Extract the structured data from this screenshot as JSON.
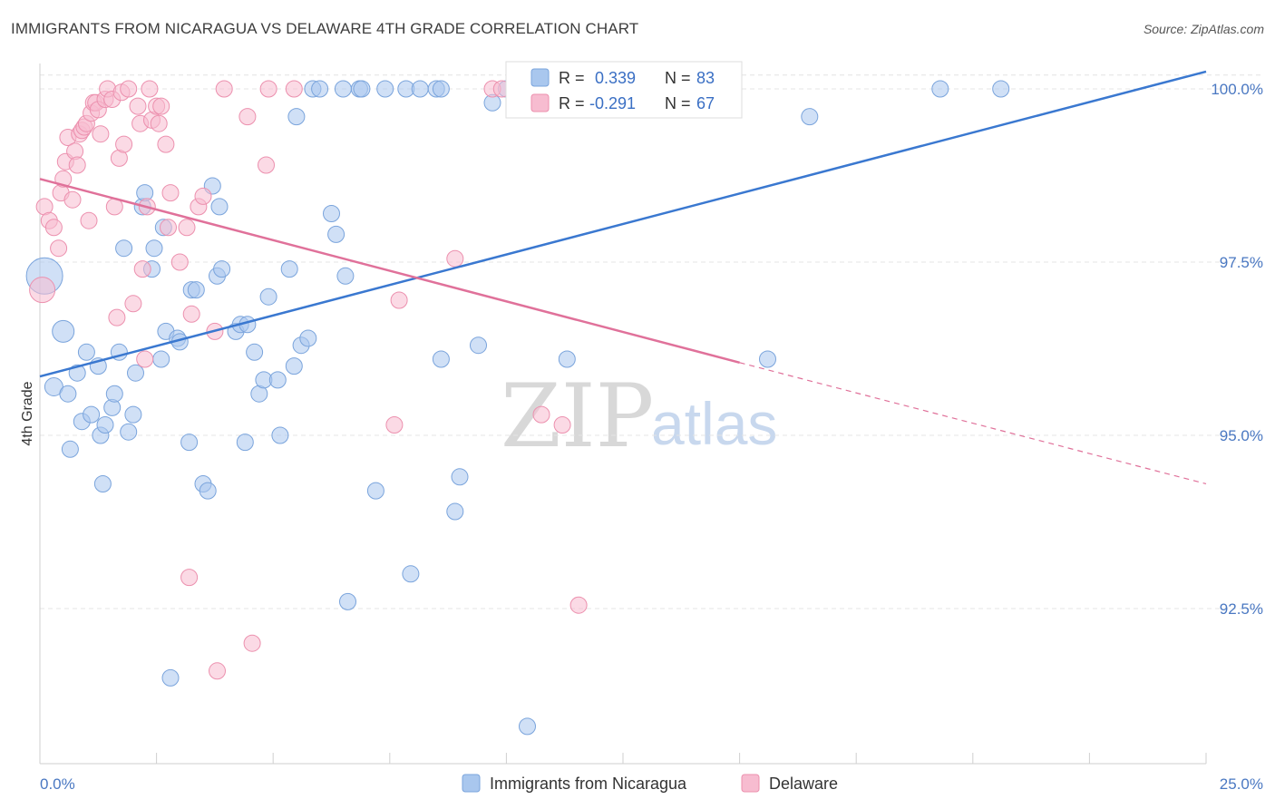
{
  "chart_data": {
    "type": "scatter",
    "title": "IMMIGRANTS FROM NICARAGUA VS DELAWARE 4TH GRADE CORRELATION CHART",
    "source": "Source: ZipAtlas.com",
    "xlabel": "",
    "ylabel": "4th Grade",
    "xlim": [
      0,
      25
    ],
    "ylim": [
      90.0,
      100.4
    ],
    "x_tick_labels": [
      "0.0%",
      "25.0%"
    ],
    "y_ticks": [
      {
        "value": 100.0,
        "label": "100.0%"
      },
      {
        "value": 97.5,
        "label": "97.5%"
      },
      {
        "value": 95.0,
        "label": "95.0%"
      },
      {
        "value": 92.5,
        "label": "92.5%"
      }
    ],
    "watermark": {
      "part1": "ZIP",
      "part2": "atlas"
    },
    "legend": [
      {
        "r_label": "R =",
        "r_value": "0.339",
        "n_label": "N =",
        "n_value": "83"
      },
      {
        "r_label": "R =",
        "r_value": "-0.291",
        "n_label": "N =",
        "n_value": "67"
      }
    ],
    "series": [
      {
        "name": "Immigrants from Nicaragua",
        "color": "#a9c7ee",
        "stroke": "#7aa4dc",
        "trend_color": "#3a78d0",
        "trend": {
          "x0": 0,
          "y0": 95.85,
          "x1": 25,
          "y1": 100.25
        },
        "points": [
          [
            0.1,
            97.3,
            20
          ],
          [
            0.5,
            96.5,
            12
          ],
          [
            0.3,
            95.7,
            10
          ],
          [
            0.8,
            95.9,
            9
          ],
          [
            1.0,
            96.2,
            9
          ],
          [
            0.6,
            95.6,
            9
          ],
          [
            0.9,
            95.2,
            9
          ],
          [
            1.1,
            95.3,
            9
          ],
          [
            1.3,
            95.0,
            9
          ],
          [
            1.4,
            95.15,
            9
          ],
          [
            0.65,
            94.8,
            9
          ],
          [
            1.35,
            94.3,
            9
          ],
          [
            1.55,
            95.4,
            9
          ],
          [
            1.6,
            95.6,
            9
          ],
          [
            1.7,
            96.2,
            9
          ],
          [
            1.8,
            97.7,
            9
          ],
          [
            1.9,
            95.05,
            9
          ],
          [
            2.0,
            95.3,
            9
          ],
          [
            2.05,
            95.9,
            9
          ],
          [
            2.2,
            98.3,
            9
          ],
          [
            2.25,
            98.5,
            9
          ],
          [
            2.4,
            97.4,
            9
          ],
          [
            2.45,
            97.7,
            9
          ],
          [
            2.6,
            96.1,
            9
          ],
          [
            2.65,
            98.0,
            9
          ],
          [
            2.7,
            96.5,
            9
          ],
          [
            2.95,
            96.4,
            9
          ],
          [
            3.0,
            96.35,
            9
          ],
          [
            3.2,
            94.9,
            9
          ],
          [
            3.25,
            97.1,
            9
          ],
          [
            3.35,
            97.1,
            9
          ],
          [
            3.5,
            94.3,
            9
          ],
          [
            3.6,
            94.2,
            9
          ],
          [
            3.7,
            98.6,
            9
          ],
          [
            3.8,
            97.3,
            9
          ],
          [
            3.85,
            98.3,
            9
          ],
          [
            3.9,
            97.4,
            9
          ],
          [
            4.2,
            96.5,
            9
          ],
          [
            4.3,
            96.6,
            9
          ],
          [
            4.4,
            94.9,
            9
          ],
          [
            4.45,
            96.6,
            9
          ],
          [
            4.6,
            96.2,
            9
          ],
          [
            4.7,
            95.6,
            9
          ],
          [
            4.8,
            95.8,
            9
          ],
          [
            4.9,
            97.0,
            9
          ],
          [
            5.1,
            95.8,
            9
          ],
          [
            5.15,
            95.0,
            9
          ],
          [
            5.35,
            97.4,
            9
          ],
          [
            5.45,
            96.0,
            9
          ],
          [
            5.5,
            99.6,
            9
          ],
          [
            5.6,
            96.3,
            9
          ],
          [
            5.75,
            96.4,
            9
          ],
          [
            5.85,
            100.0,
            9
          ],
          [
            6.0,
            100.0,
            9
          ],
          [
            6.25,
            98.2,
            9
          ],
          [
            6.35,
            97.9,
            9
          ],
          [
            6.5,
            100.0,
            9
          ],
          [
            6.55,
            97.3,
            9
          ],
          [
            6.6,
            92.6,
            9
          ],
          [
            6.85,
            100.0,
            9
          ],
          [
            6.9,
            100.0,
            9
          ],
          [
            7.2,
            94.2,
            9
          ],
          [
            7.4,
            100.0,
            9
          ],
          [
            7.85,
            100.0,
            9
          ],
          [
            7.95,
            93.0,
            9
          ],
          [
            8.15,
            100.0,
            9
          ],
          [
            8.5,
            100.0,
            9
          ],
          [
            8.6,
            100.0,
            9
          ],
          [
            8.6,
            96.1,
            9
          ],
          [
            8.9,
            93.9,
            9
          ],
          [
            9.0,
            94.4,
            9
          ],
          [
            9.4,
            96.3,
            9
          ],
          [
            9.7,
            99.8,
            9
          ],
          [
            10.0,
            100.0,
            9
          ],
          [
            10.45,
            90.8,
            9
          ],
          [
            11.3,
            100.0,
            9
          ],
          [
            11.3,
            96.1,
            9
          ],
          [
            15.6,
            96.1,
            9
          ],
          [
            16.5,
            99.6,
            9
          ],
          [
            19.3,
            100.0,
            9
          ],
          [
            20.6,
            100.0,
            9
          ],
          [
            2.8,
            91.5,
            9
          ],
          [
            1.25,
            96.0,
            9
          ]
        ]
      },
      {
        "name": "Delaware",
        "color": "#f7bcd0",
        "stroke": "#ec90ae",
        "trend_color": "#e0719a",
        "trend": {
          "x0": 0,
          "y0": 98.7,
          "x1": 15,
          "y1": 96.05
        },
        "trend_dashed": {
          "x0": 15,
          "y0": 96.05,
          "x1": 25,
          "y1": 94.3
        },
        "points": [
          [
            0.05,
            97.1,
            14
          ],
          [
            0.1,
            98.3,
            9
          ],
          [
            0.2,
            98.1,
            9
          ],
          [
            0.3,
            98.0,
            9
          ],
          [
            0.4,
            97.7,
            9
          ],
          [
            0.45,
            98.5,
            9
          ],
          [
            0.5,
            98.7,
            9
          ],
          [
            0.55,
            98.95,
            9
          ],
          [
            0.6,
            99.3,
            9
          ],
          [
            0.7,
            98.4,
            9
          ],
          [
            0.75,
            99.1,
            9
          ],
          [
            0.8,
            98.9,
            9
          ],
          [
            0.85,
            99.35,
            9
          ],
          [
            0.9,
            99.4,
            9
          ],
          [
            0.95,
            99.45,
            9
          ],
          [
            1.0,
            99.5,
            9
          ],
          [
            1.05,
            98.1,
            9
          ],
          [
            1.1,
            99.65,
            9
          ],
          [
            1.15,
            99.8,
            9
          ],
          [
            1.2,
            99.8,
            9
          ],
          [
            1.25,
            99.7,
            9
          ],
          [
            1.3,
            99.35,
            9
          ],
          [
            1.4,
            99.85,
            9
          ],
          [
            1.45,
            100.0,
            9
          ],
          [
            1.55,
            99.85,
            9
          ],
          [
            1.6,
            98.3,
            9
          ],
          [
            1.65,
            96.7,
            9
          ],
          [
            1.7,
            99.0,
            9
          ],
          [
            1.75,
            99.95,
            9
          ],
          [
            1.8,
            99.2,
            9
          ],
          [
            1.9,
            100.0,
            9
          ],
          [
            2.0,
            96.9,
            9
          ],
          [
            2.1,
            99.75,
            9
          ],
          [
            2.15,
            99.5,
            9
          ],
          [
            2.2,
            97.4,
            9
          ],
          [
            2.25,
            96.1,
            9
          ],
          [
            2.3,
            98.3,
            9
          ],
          [
            2.35,
            100.0,
            9
          ],
          [
            2.4,
            99.55,
            9
          ],
          [
            2.5,
            99.75,
            9
          ],
          [
            2.55,
            99.5,
            9
          ],
          [
            2.6,
            99.75,
            9
          ],
          [
            2.7,
            99.2,
            9
          ],
          [
            2.75,
            98.0,
            9
          ],
          [
            2.8,
            98.5,
            9
          ],
          [
            3.0,
            97.5,
            9
          ],
          [
            3.15,
            98.0,
            9
          ],
          [
            3.2,
            92.95,
            9
          ],
          [
            3.25,
            96.75,
            9
          ],
          [
            3.4,
            98.3,
            9
          ],
          [
            3.5,
            98.45,
            9
          ],
          [
            3.75,
            96.5,
            9
          ],
          [
            3.8,
            91.6,
            9
          ],
          [
            3.95,
            100.0,
            9
          ],
          [
            4.45,
            99.6,
            9
          ],
          [
            4.55,
            92.0,
            9
          ],
          [
            4.9,
            100.0,
            9
          ],
          [
            4.85,
            98.9,
            9
          ],
          [
            5.45,
            100.0,
            9
          ],
          [
            7.6,
            95.15,
            9
          ],
          [
            7.7,
            96.95,
            9
          ],
          [
            8.9,
            97.55,
            9
          ],
          [
            9.7,
            100.0,
            9
          ],
          [
            9.9,
            100.0,
            9
          ],
          [
            10.75,
            95.3,
            9
          ],
          [
            11.2,
            95.15,
            9
          ],
          [
            11.55,
            92.55,
            9
          ]
        ]
      }
    ]
  }
}
